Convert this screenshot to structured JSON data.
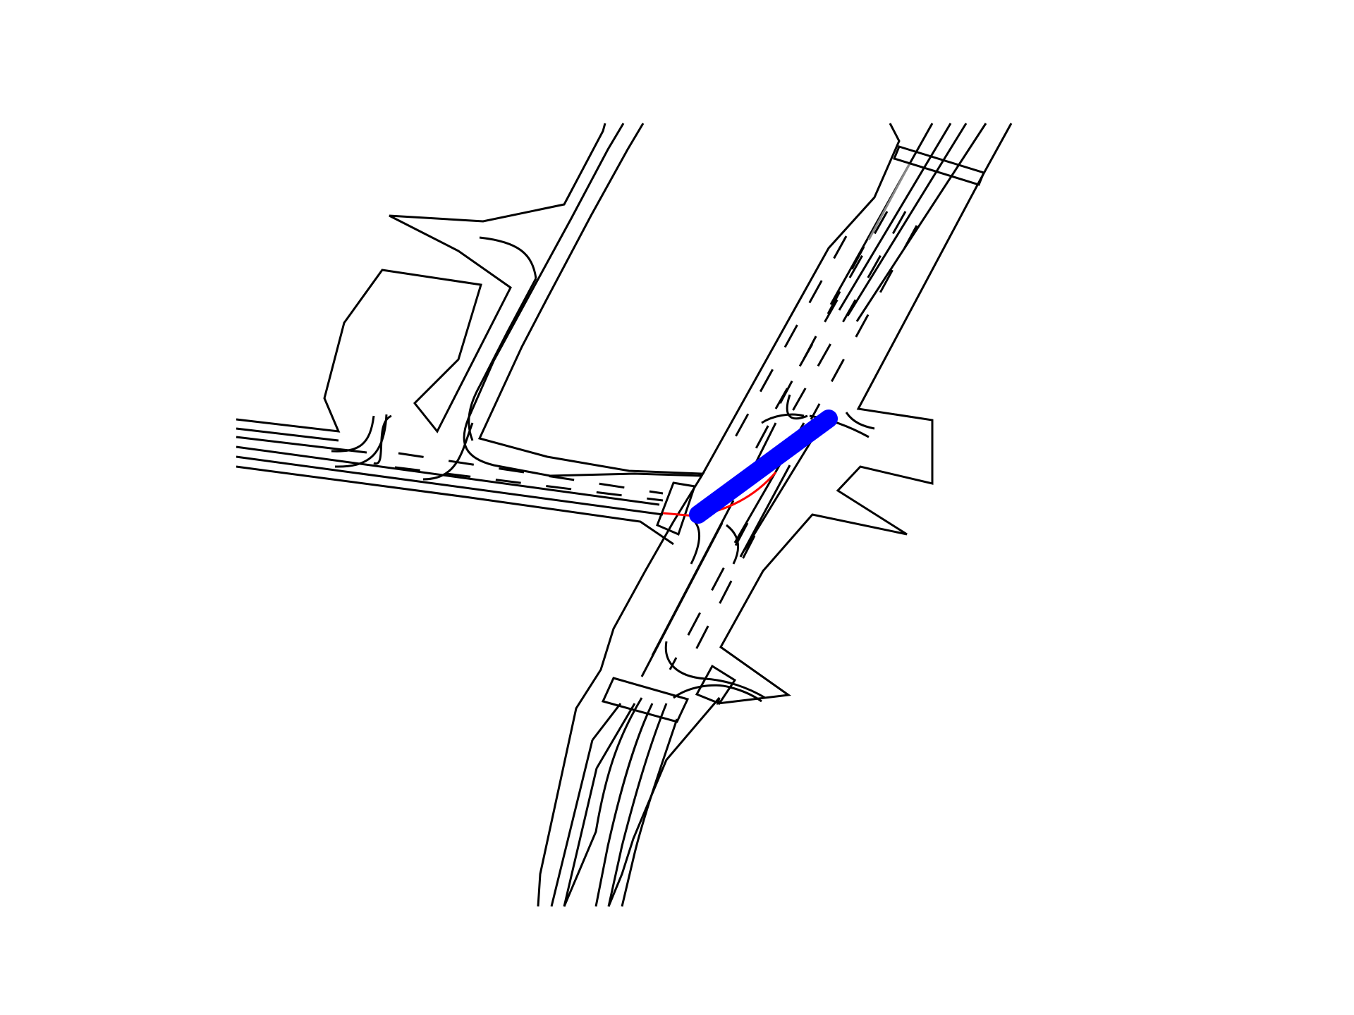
{
  "map": {
    "background": "#ffffff",
    "road_color": "#000000",
    "highlight_colors": {
      "planned_path": "#0000ff",
      "reference_path": "#ff0000",
      "faded_lane": "#888888"
    },
    "elements": {
      "planned_path": "planned-path",
      "reference_path": "reference-path"
    }
  }
}
